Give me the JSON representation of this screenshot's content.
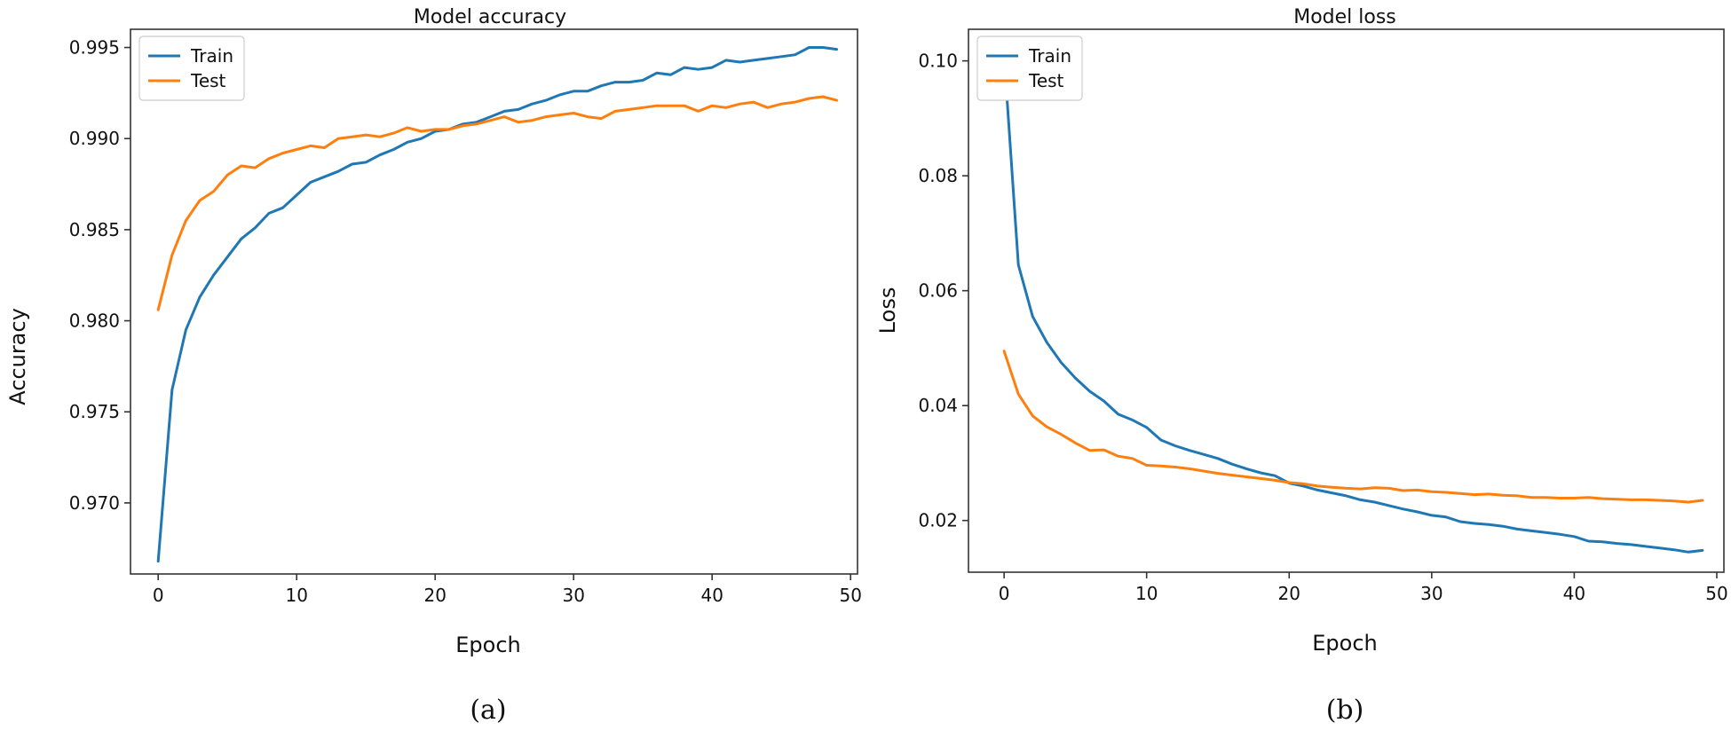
{
  "chart_data": [
    {
      "type": "line",
      "title": "Model accuracy",
      "xlabel": "Epoch",
      "ylabel": "Accuracy",
      "caption": "(a)",
      "xlim": [
        -2,
        50.5
      ],
      "ylim": [
        0.9661,
        0.996
      ],
      "xticks": [
        0,
        10,
        20,
        30,
        40,
        50
      ],
      "yticks": [
        0.97,
        0.975,
        0.98,
        0.985,
        0.99,
        0.995
      ],
      "ytick_labels": [
        "0.970",
        "0.975",
        "0.980",
        "0.985",
        "0.990",
        "0.995"
      ],
      "legend_position": "top-left",
      "series": [
        {
          "name": "Train",
          "color": "#1f77b4",
          "x": [
            0,
            1,
            2,
            3,
            4,
            5,
            6,
            7,
            8,
            9,
            10,
            11,
            12,
            13,
            14,
            15,
            16,
            17,
            18,
            19,
            20,
            21,
            22,
            23,
            24,
            25,
            26,
            27,
            28,
            29,
            30,
            31,
            32,
            33,
            34,
            35,
            36,
            37,
            38,
            39,
            40,
            41,
            42,
            43,
            44,
            45,
            46,
            47,
            48,
            49
          ],
          "values": [
            0.9668,
            0.9762,
            0.9795,
            0.9813,
            0.9825,
            0.9835,
            0.9845,
            0.9851,
            0.9859,
            0.9862,
            0.9869,
            0.9876,
            0.9879,
            0.9882,
            0.9886,
            0.9887,
            0.9891,
            0.9894,
            0.9898,
            0.99,
            0.9904,
            0.9905,
            0.9908,
            0.9909,
            0.9912,
            0.9915,
            0.9916,
            0.9919,
            0.9921,
            0.9924,
            0.9926,
            0.9926,
            0.9929,
            0.9931,
            0.9931,
            0.9932,
            0.9936,
            0.9935,
            0.9939,
            0.9938,
            0.9939,
            0.9943,
            0.9942,
            0.9943,
            0.9944,
            0.9945,
            0.9946,
            0.995,
            0.995,
            0.9949
          ]
        },
        {
          "name": "Test",
          "color": "#ff7f0e",
          "x": [
            0,
            1,
            2,
            3,
            4,
            5,
            6,
            7,
            8,
            9,
            10,
            11,
            12,
            13,
            14,
            15,
            16,
            17,
            18,
            19,
            20,
            21,
            22,
            23,
            24,
            25,
            26,
            27,
            28,
            29,
            30,
            31,
            32,
            33,
            34,
            35,
            36,
            37,
            38,
            39,
            40,
            41,
            42,
            43,
            44,
            45,
            46,
            47,
            48,
            49
          ],
          "values": [
            0.9806,
            0.9836,
            0.9855,
            0.9866,
            0.9871,
            0.988,
            0.9885,
            0.9884,
            0.9889,
            0.9892,
            0.9894,
            0.9896,
            0.9895,
            0.99,
            0.9901,
            0.9902,
            0.9901,
            0.9903,
            0.9906,
            0.9904,
            0.9905,
            0.9905,
            0.9907,
            0.9908,
            0.991,
            0.9912,
            0.9909,
            0.991,
            0.9912,
            0.9913,
            0.9914,
            0.9912,
            0.9911,
            0.9915,
            0.9916,
            0.9917,
            0.9918,
            0.9918,
            0.9918,
            0.9915,
            0.9918,
            0.9917,
            0.9919,
            0.992,
            0.9917,
            0.9919,
            0.992,
            0.9922,
            0.9923,
            0.9921
          ]
        }
      ]
    },
    {
      "type": "line",
      "title": "Model loss",
      "xlabel": "Epoch",
      "ylabel": "Loss",
      "caption": "(b)",
      "xlim": [
        -2.5,
        50.5
      ],
      "ylim": [
        0.011,
        0.1055
      ],
      "xticks": [
        0,
        10,
        20,
        30,
        40,
        50
      ],
      "yticks": [
        0.02,
        0.04,
        0.06,
        0.08,
        0.1
      ],
      "ytick_labels": [
        "0.02",
        "0.04",
        "0.06",
        "0.08",
        "0.10"
      ],
      "legend_position": "top-left",
      "series": [
        {
          "name": "Train",
          "color": "#1f77b4",
          "x": [
            0,
            1,
            2,
            3,
            4,
            5,
            6,
            7,
            8,
            9,
            10,
            11,
            12,
            13,
            14,
            15,
            16,
            17,
            18,
            19,
            20,
            21,
            22,
            23,
            24,
            25,
            26,
            27,
            28,
            29,
            30,
            31,
            32,
            33,
            34,
            35,
            36,
            37,
            38,
            39,
            40,
            41,
            42,
            43,
            44,
            45,
            46,
            47,
            48,
            49
          ],
          "values": [
            0.101,
            0.0645,
            0.0555,
            0.051,
            0.0475,
            0.0448,
            0.0425,
            0.0408,
            0.0385,
            0.0375,
            0.0362,
            0.034,
            0.033,
            0.0322,
            0.0315,
            0.0308,
            0.0298,
            0.029,
            0.0283,
            0.0278,
            0.0265,
            0.026,
            0.0253,
            0.0248,
            0.0243,
            0.0236,
            0.0232,
            0.0226,
            0.022,
            0.0215,
            0.0209,
            0.0206,
            0.0198,
            0.0195,
            0.0193,
            0.019,
            0.0185,
            0.0182,
            0.0179,
            0.0176,
            0.0172,
            0.0164,
            0.0163,
            0.016,
            0.0158,
            0.0155,
            0.0152,
            0.0149,
            0.0145,
            0.0148
          ]
        },
        {
          "name": "Test",
          "color": "#ff7f0e",
          "x": [
            0,
            1,
            2,
            3,
            4,
            5,
            6,
            7,
            8,
            9,
            10,
            11,
            12,
            13,
            14,
            15,
            16,
            17,
            18,
            19,
            20,
            21,
            22,
            23,
            24,
            25,
            26,
            27,
            28,
            29,
            30,
            31,
            32,
            33,
            34,
            35,
            36,
            37,
            38,
            39,
            40,
            41,
            42,
            43,
            44,
            45,
            46,
            47,
            48,
            49
          ],
          "values": [
            0.0495,
            0.042,
            0.0382,
            0.0363,
            0.035,
            0.0335,
            0.0322,
            0.0323,
            0.0312,
            0.0308,
            0.0296,
            0.0295,
            0.0293,
            0.029,
            0.0286,
            0.0282,
            0.0279,
            0.0276,
            0.0273,
            0.027,
            0.0266,
            0.0264,
            0.026,
            0.0258,
            0.0256,
            0.0255,
            0.0257,
            0.0256,
            0.0252,
            0.0253,
            0.025,
            0.0249,
            0.0247,
            0.0245,
            0.0246,
            0.0244,
            0.0243,
            0.024,
            0.024,
            0.0239,
            0.0239,
            0.024,
            0.0238,
            0.0237,
            0.0236,
            0.0236,
            0.0235,
            0.0234,
            0.0232,
            0.0235
          ]
        }
      ]
    }
  ]
}
